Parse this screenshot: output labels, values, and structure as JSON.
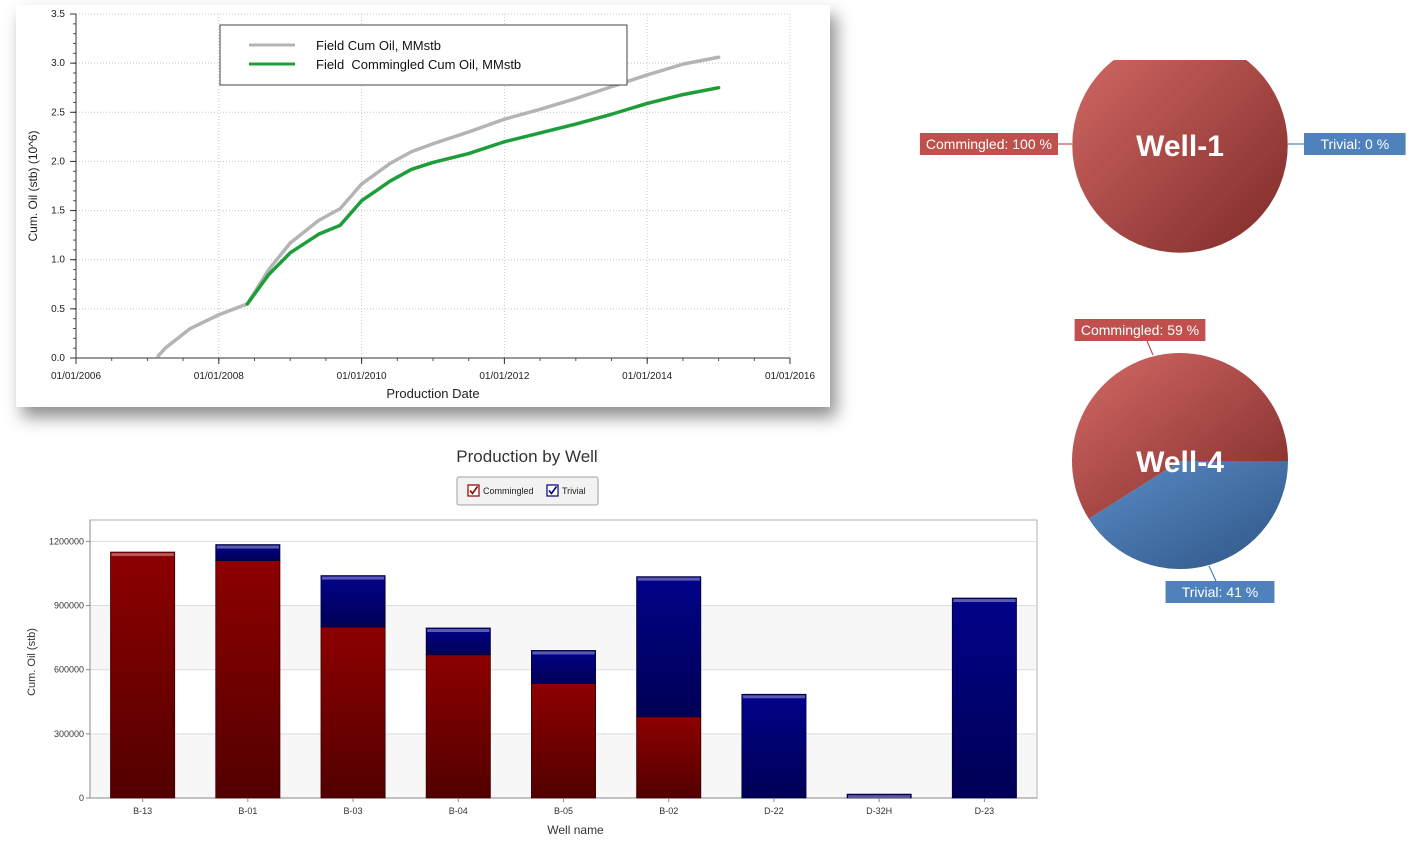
{
  "chart_data": [
    {
      "id": "cum-oil-line",
      "type": "line",
      "title": "",
      "xlabel": "Production Date",
      "ylabel": "Cum. Oil (stb) (10^6)",
      "xlim": [
        2006.0,
        2016.0
      ],
      "ylim": [
        0,
        3.5
      ],
      "x_ticks": [
        2006,
        2008,
        2010,
        2012,
        2014,
        2016
      ],
      "x_tick_labels": [
        "01/01/2006",
        "01/01/2008",
        "01/01/2010",
        "01/01/2012",
        "01/01/2014",
        "01/01/2016"
      ],
      "y_ticks": [
        0,
        0.5,
        1.0,
        1.5,
        2.0,
        2.5,
        3.0,
        3.5
      ],
      "y_tick_labels": [
        "0.0",
        "0.5",
        "1.0",
        "1.5",
        "2.0",
        "2.5",
        "3.0",
        "3.5"
      ],
      "grid": true,
      "legend_position": "top-center",
      "series": [
        {
          "name": "Field Cum Oil, MMstb",
          "color": "#b4b4b4",
          "x": [
            2007.15,
            2007.25,
            2007.6,
            2008.0,
            2008.4,
            2008.7,
            2009.0,
            2009.4,
            2009.7,
            2010.0,
            2010.4,
            2010.7,
            2011.0,
            2011.5,
            2012.0,
            2012.5,
            2013.0,
            2013.5,
            2014.0,
            2014.5,
            2015.0
          ],
          "y": [
            0.02,
            0.1,
            0.3,
            0.44,
            0.55,
            0.9,
            1.17,
            1.4,
            1.52,
            1.77,
            1.98,
            2.1,
            2.18,
            2.3,
            2.43,
            2.53,
            2.64,
            2.76,
            2.88,
            2.99,
            3.06
          ]
        },
        {
          "name": "Field  Commingled Cum Oil, MMstb",
          "color": "#1e9e3a",
          "x": [
            2008.4,
            2008.7,
            2009.0,
            2009.4,
            2009.7,
            2010.0,
            2010.4,
            2010.7,
            2011.0,
            2011.5,
            2012.0,
            2012.5,
            2013.0,
            2013.5,
            2014.0,
            2014.5,
            2015.0
          ],
          "y": [
            0.55,
            0.85,
            1.07,
            1.26,
            1.35,
            1.6,
            1.8,
            1.92,
            1.99,
            2.08,
            2.2,
            2.29,
            2.38,
            2.48,
            2.59,
            2.68,
            2.75
          ]
        }
      ]
    },
    {
      "id": "production-by-well",
      "type": "bar",
      "stacked": true,
      "title": "Production by Well",
      "xlabel": "Well name",
      "ylabel": "Cum. Oil (stb)",
      "categories": [
        "B-13",
        "B-01",
        "B-03",
        "B-04",
        "B-05",
        "B-02",
        "D-22",
        "D-32H",
        "D-23"
      ],
      "ylim": [
        0,
        1300000
      ],
      "y_ticks": [
        0,
        300000,
        600000,
        900000,
        1200000
      ],
      "y_tick_labels": [
        "0",
        "300000",
        "600000",
        "900000",
        "1200000"
      ],
      "legend_position": "top-center",
      "series": [
        {
          "name": "Commingled",
          "color": "#8b0000",
          "values": [
            1150000,
            1110000,
            800000,
            670000,
            535000,
            380000,
            0,
            0,
            0
          ]
        },
        {
          "name": "Trivial",
          "color": "#00007a",
          "values": [
            0,
            75000,
            240000,
            125000,
            155000,
            655000,
            485000,
            18000,
            935000
          ]
        }
      ]
    },
    {
      "id": "well-1-pie",
      "type": "pie",
      "title": "Well-1",
      "labels": [
        "Commingled",
        "Trivial"
      ],
      "values": [
        100,
        0
      ],
      "colors": [
        "#c0504d",
        "#4f81bd"
      ],
      "label_texts": [
        "Commingled: 100 %",
        "Trivial: 0 %"
      ]
    },
    {
      "id": "well-4-pie",
      "type": "pie",
      "title": "Well-4",
      "labels": [
        "Commingled",
        "Trivial"
      ],
      "values": [
        59,
        41
      ],
      "colors": [
        "#c0504d",
        "#4f81bd"
      ],
      "label_texts": [
        "Commingled: 59 %",
        "Trivial: 41 %"
      ]
    }
  ]
}
